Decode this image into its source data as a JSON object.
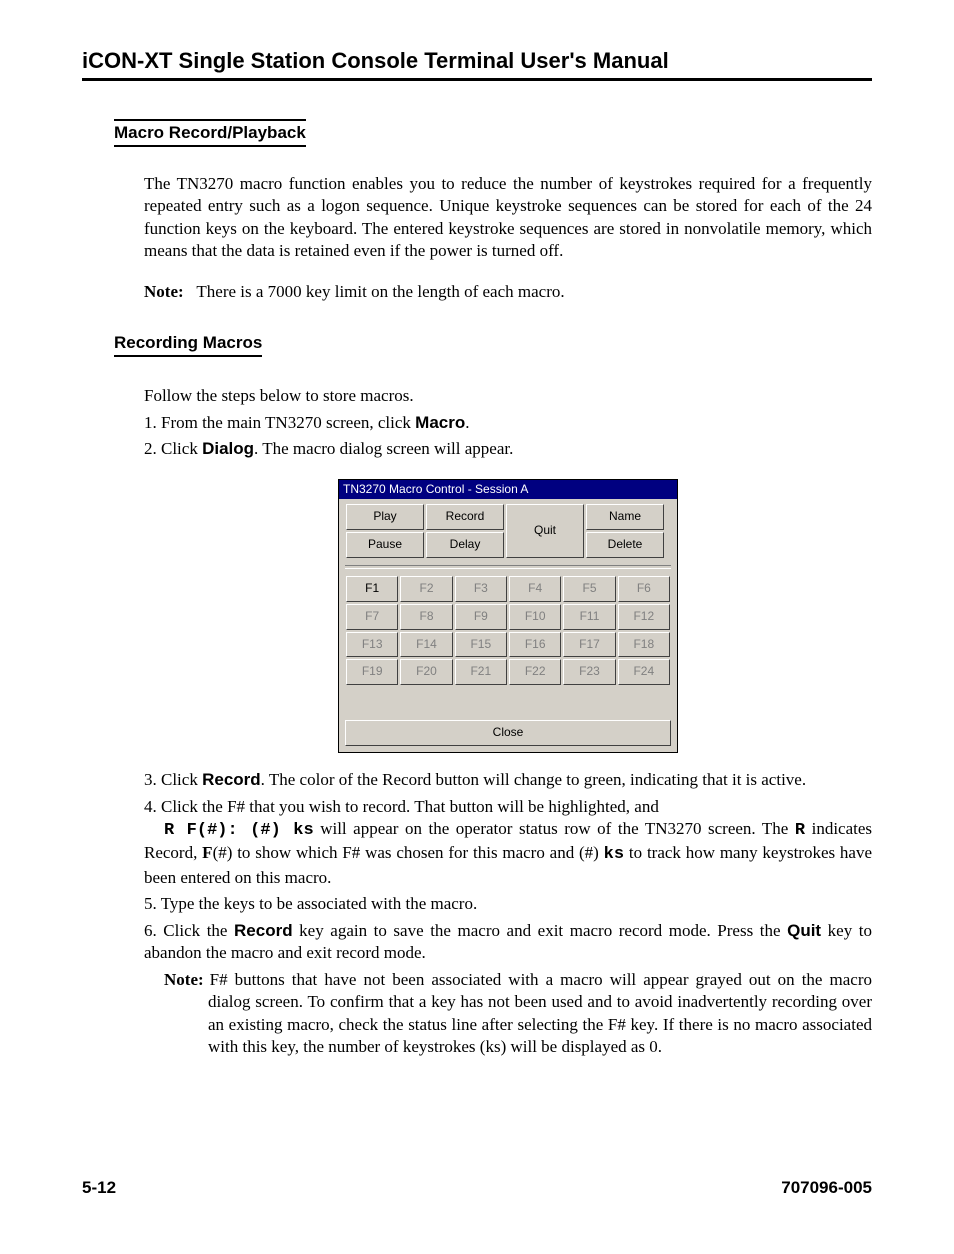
{
  "header": {
    "title": "iCON-XT Single Station Console Terminal User's Manual"
  },
  "section": {
    "macro_record_playback": "Macro Record/Playback",
    "recording_macros": "Recording Macros"
  },
  "para": {
    "intro": "The TN3270 macro function enables you to reduce the number of keystrokes required for a frequently repeated entry such as a logon sequence. Unique keystroke sequences can be stored for each of the 24 function keys on the keyboard. The entered keystroke sequences are stored in nonvolatile memory, which means that the data is retained even if the power is turned off.",
    "note_label": "Note:",
    "note_text": "There is a 7000 key limit on the length of each macro.",
    "follow": "Follow the steps below to store macros.",
    "s1_a": "1. From the main TN3270 screen, click ",
    "s1_b": "Macro",
    "s1_c": ".",
    "s2_a": "2. Click ",
    "s2_b": "Dialog",
    "s2_c": ". The macro dialog screen will appear.",
    "s3_a": "3. Click ",
    "s3_b": "Record",
    "s3_c": ". The color of the Record button will change to green, indicating that it is active.",
    "s4_a": "4. Click the F# that you wish to record. That button will be highlighted, and",
    "s4_code": "R F(#): (#) ks",
    "s4_b": " will appear on the operator status row of the TN3270 screen. The ",
    "s4_r": "R",
    "s4_c": " indicates Record, ",
    "s4_f": "F",
    "s4_d": "(#) to show which F# was chosen for this macro and (#) ",
    "s4_ks": "ks",
    "s4_e": " to track how many keystrokes have been entered on this macro.",
    "s5": "5. Type the keys to be associated with the macro.",
    "s6_a": "6. Click the ",
    "s6_b": "Record",
    "s6_c": " key again to save the macro and exit macro record mode. Press the ",
    "s6_d": "Quit",
    "s6_e": " key to abandon the macro and exit record mode.",
    "s6_note": "F# buttons that have not been associated with a macro will appear grayed out on the macro dialog screen. To confirm that a key has not been used and to avoid inadvertently recording over an existing macro, check the status line after selecting the F# key. If there is no macro associated with this key, the number of keystrokes (ks) will be displayed as 0."
  },
  "dialog": {
    "title": "TN3270 Macro Control - Session A",
    "play": "Play",
    "record": "Record",
    "pause": "Pause",
    "delay": "Delay",
    "quit": "Quit",
    "name": "Name",
    "delete": "Delete",
    "close": "Close",
    "fkeys": [
      "F1",
      "F2",
      "F3",
      "F4",
      "F5",
      "F6",
      "F7",
      "F8",
      "F9",
      "F10",
      "F11",
      "F12",
      "F13",
      "F14",
      "F15",
      "F16",
      "F17",
      "F18",
      "F19",
      "F20",
      "F21",
      "F22",
      "F23",
      "F24"
    ],
    "fkey_enabled_index": 0
  },
  "footer": {
    "page": "5-12",
    "doc": "707096-005"
  }
}
